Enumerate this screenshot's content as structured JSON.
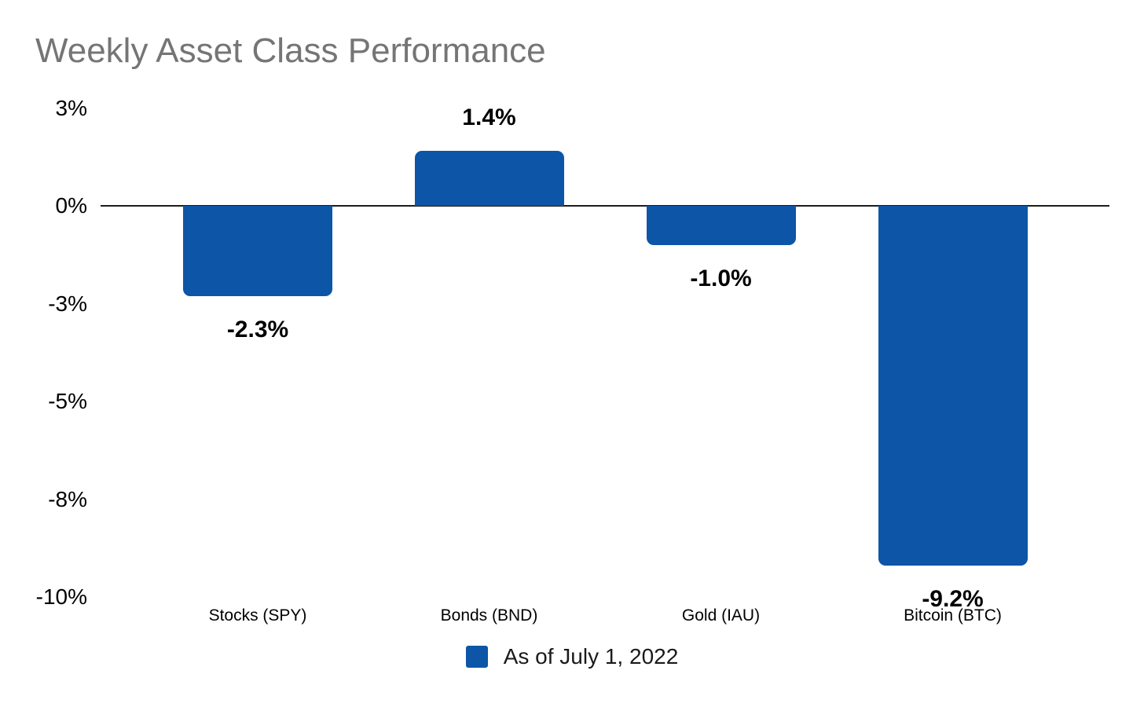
{
  "chart_data": {
    "type": "bar",
    "title": "Weekly Asset Class Performance",
    "categories": [
      "Stocks (SPY)",
      "Bonds (BND)",
      "Gold (IAU)",
      "Bitcoin (BTC)"
    ],
    "series": [
      {
        "name": "As of July 1, 2022",
        "values": [
          -2.3,
          1.4,
          -1.0,
          -9.2
        ]
      }
    ],
    "data_labels": [
      "-2.3%",
      "1.4%",
      "-1.0%",
      "-9.2%"
    ],
    "y_axis": {
      "tick_labels": [
        "3%",
        "0%",
        "-3%",
        "-5%",
        "-8%",
        "-10%"
      ],
      "tick_values": [
        2.5,
        0,
        -2.5,
        -5,
        -7.5,
        -10
      ],
      "range": [
        -10,
        2.5
      ]
    },
    "legend": {
      "position": "bottom",
      "label": "As of July 1, 2022"
    },
    "grid": false,
    "bar_color": "#0d55a6",
    "axis_line_color": "#1c1c1c",
    "title_color": "#757575",
    "label_color": "#000000"
  }
}
